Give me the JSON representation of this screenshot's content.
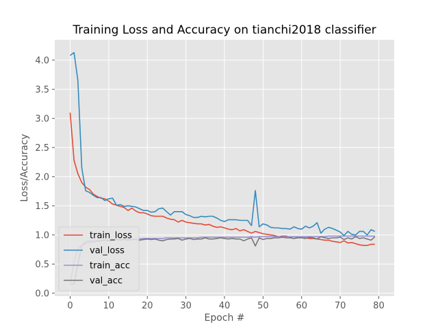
{
  "chart_data": {
    "type": "line",
    "title": "Training Loss and Accuracy on tianchi2018 classifier",
    "xlabel": "Epoch #",
    "ylabel": "Loss/Accuracy",
    "xlim": [
      -4,
      84
    ],
    "ylim": [
      -0.05,
      4.35
    ],
    "xticks": [
      0,
      10,
      20,
      30,
      40,
      50,
      60,
      70,
      80
    ],
    "yticks": [
      0.0,
      0.5,
      1.0,
      1.5,
      2.0,
      2.5,
      3.0,
      3.5,
      4.0
    ],
    "ytick_labels": [
      "0.0",
      "0.5",
      "1.0",
      "1.5",
      "2.0",
      "2.5",
      "3.0",
      "3.5",
      "4.0"
    ],
    "grid": true,
    "legend_position": "lower-left",
    "x": [
      0,
      1,
      2,
      3,
      4,
      5,
      6,
      7,
      8,
      9,
      10,
      11,
      12,
      13,
      14,
      15,
      16,
      17,
      18,
      19,
      20,
      21,
      22,
      23,
      24,
      25,
      26,
      27,
      28,
      29,
      30,
      31,
      32,
      33,
      34,
      35,
      36,
      37,
      38,
      39,
      40,
      41,
      42,
      43,
      44,
      45,
      46,
      47,
      48,
      49,
      50,
      51,
      52,
      53,
      54,
      55,
      56,
      57,
      58,
      59,
      60,
      61,
      62,
      63,
      64,
      65,
      66,
      67,
      68,
      69,
      70,
      71,
      72,
      73,
      74,
      75,
      76,
      77,
      78,
      79
    ],
    "series": [
      {
        "name": "train_loss",
        "color": "#e24a33",
        "values": [
          3.1,
          2.28,
          2.05,
          1.9,
          1.82,
          1.78,
          1.7,
          1.66,
          1.63,
          1.62,
          1.58,
          1.53,
          1.51,
          1.49,
          1.47,
          1.42,
          1.46,
          1.41,
          1.38,
          1.38,
          1.36,
          1.33,
          1.32,
          1.32,
          1.32,
          1.29,
          1.27,
          1.26,
          1.22,
          1.25,
          1.22,
          1.21,
          1.2,
          1.19,
          1.19,
          1.17,
          1.18,
          1.15,
          1.13,
          1.14,
          1.12,
          1.1,
          1.09,
          1.11,
          1.07,
          1.09,
          1.06,
          1.03,
          1.06,
          1.04,
          1.02,
          1.01,
          1.0,
          0.99,
          0.97,
          0.98,
          0.98,
          0.96,
          0.97,
          0.96,
          0.95,
          0.95,
          0.94,
          0.94,
          0.93,
          0.92,
          0.91,
          0.91,
          0.89,
          0.88,
          0.87,
          0.9,
          0.86,
          0.87,
          0.85,
          0.83,
          0.82,
          0.82,
          0.84,
          0.84
        ]
      },
      {
        "name": "val_loss",
        "color": "#348abd",
        "values": [
          4.08,
          4.13,
          3.65,
          2.15,
          1.76,
          1.73,
          1.68,
          1.64,
          1.64,
          1.59,
          1.62,
          1.63,
          1.51,
          1.52,
          1.49,
          1.5,
          1.49,
          1.48,
          1.45,
          1.42,
          1.42,
          1.39,
          1.4,
          1.45,
          1.46,
          1.4,
          1.34,
          1.4,
          1.4,
          1.4,
          1.35,
          1.33,
          1.3,
          1.3,
          1.32,
          1.31,
          1.32,
          1.32,
          1.29,
          1.25,
          1.23,
          1.26,
          1.26,
          1.26,
          1.25,
          1.25,
          1.25,
          1.16,
          1.76,
          1.14,
          1.19,
          1.17,
          1.13,
          1.12,
          1.12,
          1.11,
          1.11,
          1.1,
          1.14,
          1.11,
          1.1,
          1.15,
          1.12,
          1.15,
          1.21,
          1.03,
          1.1,
          1.13,
          1.11,
          1.08,
          1.05,
          0.99,
          1.06,
          1.01,
          1.0,
          1.06,
          1.06,
          1.0,
          1.09,
          1.06
        ]
      },
      {
        "name": "train_acc",
        "color": "#988ed5",
        "values": [
          0.18,
          0.54,
          0.76,
          0.82,
          0.85,
          0.87,
          0.88,
          0.89,
          0.9,
          0.91,
          0.91,
          0.92,
          0.92,
          0.92,
          0.93,
          0.93,
          0.93,
          0.93,
          0.93,
          0.94,
          0.94,
          0.94,
          0.94,
          0.94,
          0.94,
          0.95,
          0.95,
          0.95,
          0.95,
          0.95,
          0.95,
          0.95,
          0.95,
          0.95,
          0.96,
          0.96,
          0.96,
          0.96,
          0.96,
          0.96,
          0.96,
          0.96,
          0.96,
          0.96,
          0.96,
          0.96,
          0.96,
          0.97,
          0.96,
          0.97,
          0.97,
          0.97,
          0.97,
          0.97,
          0.97,
          0.97,
          0.97,
          0.97,
          0.97,
          0.97,
          0.97,
          0.97,
          0.97,
          0.97,
          0.97,
          0.97,
          0.97,
          0.98,
          0.98,
          0.98,
          0.98,
          0.98,
          0.98,
          0.98,
          0.98,
          0.98,
          0.98,
          0.98,
          0.98,
          0.98
        ]
      },
      {
        "name": "val_acc",
        "color": "#777777",
        "values": [
          0.15,
          0.16,
          0.5,
          0.82,
          0.88,
          0.9,
          0.89,
          0.9,
          0.9,
          0.91,
          0.9,
          0.91,
          0.92,
          0.91,
          0.92,
          0.91,
          0.92,
          0.92,
          0.91,
          0.92,
          0.93,
          0.92,
          0.93,
          0.91,
          0.9,
          0.92,
          0.93,
          0.93,
          0.94,
          0.91,
          0.93,
          0.94,
          0.92,
          0.93,
          0.93,
          0.95,
          0.93,
          0.93,
          0.94,
          0.95,
          0.94,
          0.93,
          0.94,
          0.93,
          0.93,
          0.9,
          0.93,
          0.95,
          0.81,
          0.95,
          0.92,
          0.94,
          0.94,
          0.95,
          0.95,
          0.96,
          0.95,
          0.95,
          0.94,
          0.95,
          0.95,
          0.94,
          0.96,
          0.95,
          0.93,
          0.97,
          0.95,
          0.94,
          0.95,
          0.95,
          0.96,
          0.92,
          0.95,
          0.93,
          0.97,
          0.94,
          0.95,
          0.93,
          0.91,
          0.97
        ]
      }
    ]
  }
}
